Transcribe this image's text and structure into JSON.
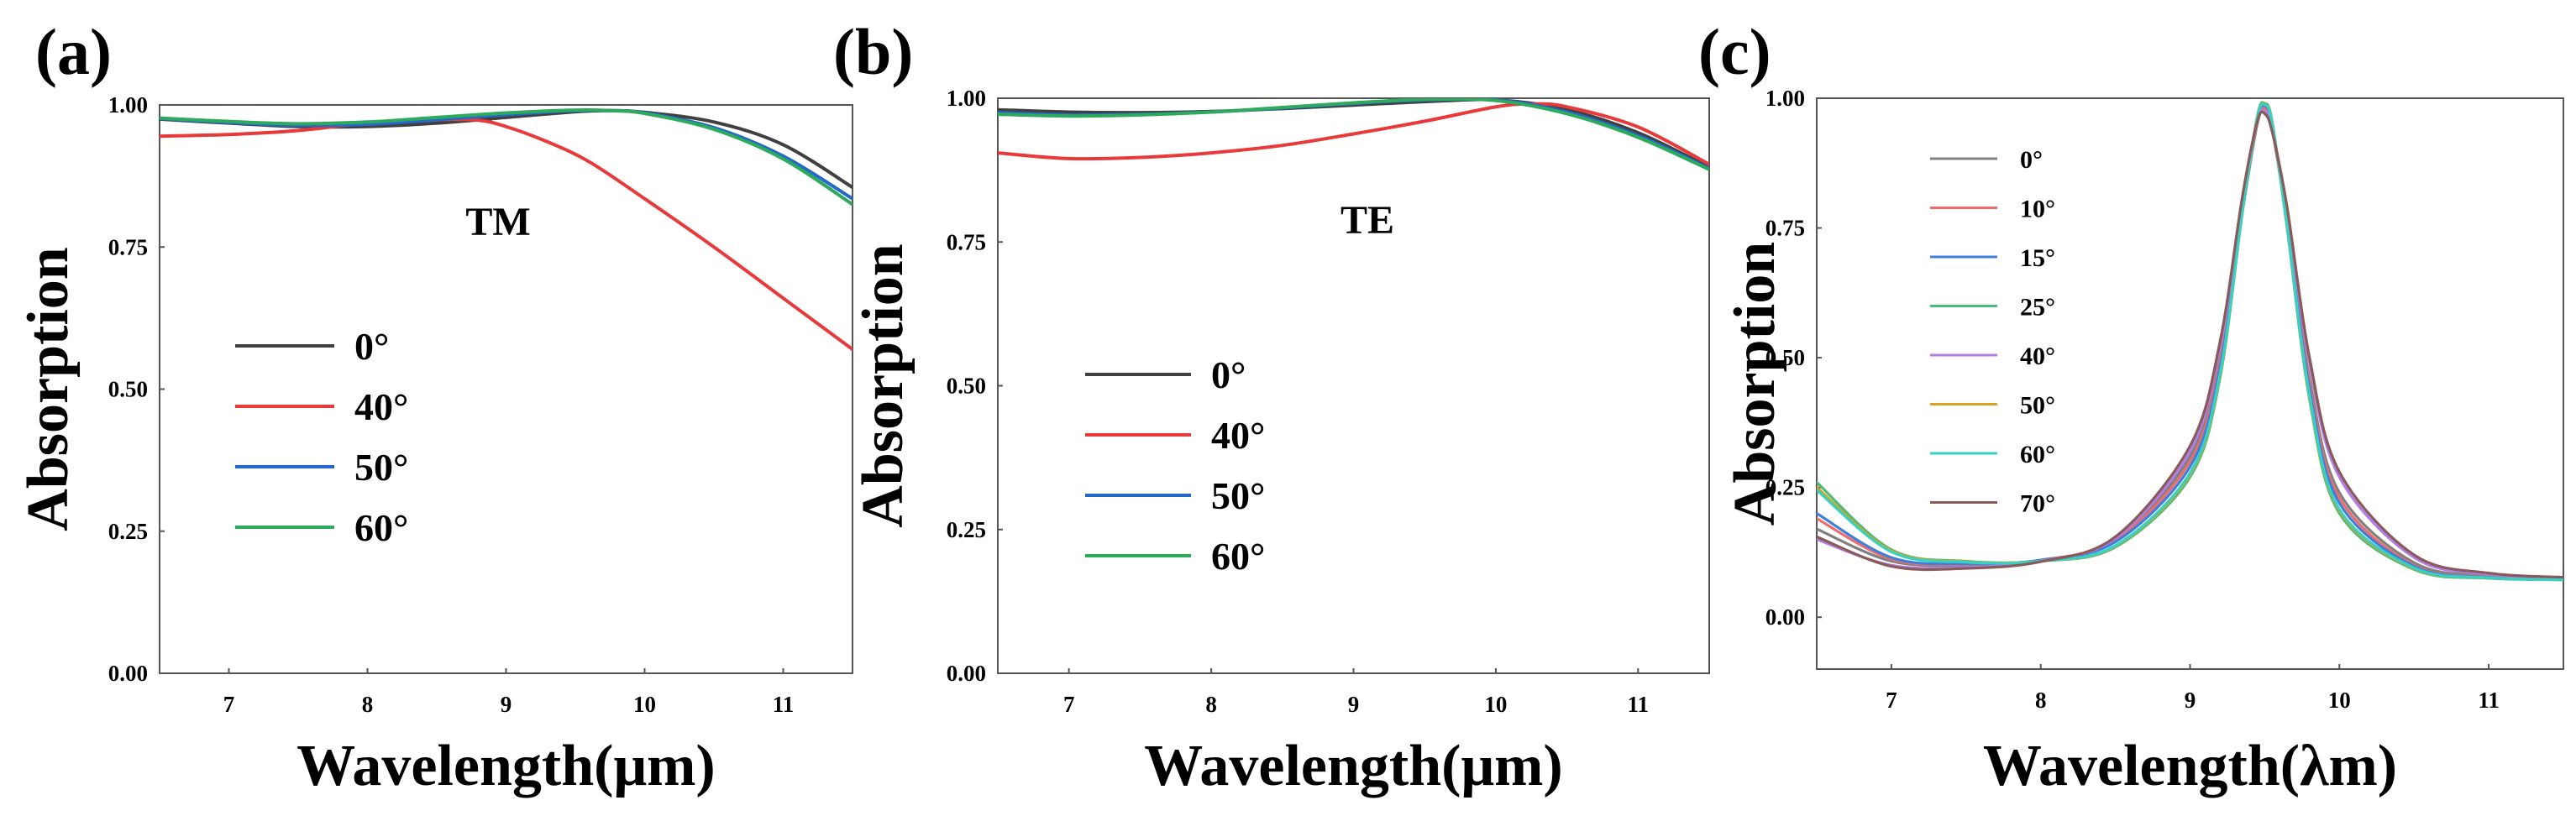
{
  "chart_data": [
    {
      "panel": "(a)",
      "type": "line",
      "mode_label": "TM",
      "xlabel": "Wavelength(μm)",
      "ylabel": "Absorption",
      "xlim": [
        6.5,
        11.5
      ],
      "ylim": [
        0,
        1.0
      ],
      "xticks": [
        "7",
        "8",
        "9",
        "10",
        "11"
      ],
      "yticks": [
        "0.00",
        "0.25",
        "0.50",
        "0.75",
        "1.00"
      ],
      "legend_style": "big",
      "series": [
        {
          "name": "0°",
          "color": "#404040",
          "x": [
            6.5,
            7.0,
            7.5,
            8.0,
            8.5,
            9.0,
            9.5,
            9.75,
            10.0,
            10.5,
            11.0,
            11.5
          ],
          "y": [
            0.975,
            0.968,
            0.962,
            0.962,
            0.968,
            0.978,
            0.988,
            0.99,
            0.987,
            0.97,
            0.93,
            0.855
          ]
        },
        {
          "name": "40°",
          "color": "#e8393b",
          "x": [
            6.5,
            7.0,
            7.5,
            8.0,
            8.5,
            8.8,
            9.0,
            9.3,
            9.6,
            10.0,
            10.5,
            11.0,
            11.5
          ],
          "y": [
            0.945,
            0.948,
            0.955,
            0.968,
            0.974,
            0.973,
            0.962,
            0.935,
            0.9,
            0.835,
            0.75,
            0.66,
            0.57
          ]
        },
        {
          "name": "50°",
          "color": "#2469c9",
          "x": [
            6.5,
            7.0,
            7.5,
            8.0,
            8.5,
            9.0,
            9.5,
            9.75,
            10.0,
            10.5,
            11.0,
            11.5
          ],
          "y": [
            0.976,
            0.969,
            0.964,
            0.966,
            0.974,
            0.983,
            0.99,
            0.99,
            0.986,
            0.96,
            0.91,
            0.835
          ]
        },
        {
          "name": "60°",
          "color": "#2eaa5c",
          "x": [
            6.5,
            7.0,
            7.5,
            8.0,
            8.5,
            9.0,
            9.5,
            9.75,
            10.0,
            10.5,
            11.0,
            11.5
          ],
          "y": [
            0.977,
            0.971,
            0.967,
            0.97,
            0.978,
            0.986,
            0.991,
            0.99,
            0.985,
            0.957,
            0.905,
            0.825
          ]
        }
      ]
    },
    {
      "panel": "(b)",
      "type": "line",
      "mode_label": "TE",
      "xlabel": "Wavelength(μm)",
      "ylabel": "Absorption",
      "xlim": [
        6.5,
        11.5
      ],
      "ylim": [
        0,
        1.0
      ],
      "xticks": [
        "7",
        "8",
        "9",
        "10",
        "11"
      ],
      "yticks": [
        "0.00",
        "0.25",
        "0.50",
        "0.75",
        "1.00"
      ],
      "legend_style": "big",
      "series": [
        {
          "name": "0°",
          "color": "#404040",
          "x": [
            6.5,
            7.0,
            7.5,
            8.0,
            8.5,
            9.0,
            9.5,
            10.0,
            10.5,
            11.0,
            11.5
          ],
          "y": [
            0.98,
            0.976,
            0.975,
            0.977,
            0.982,
            0.988,
            0.994,
            0.997,
            0.98,
            0.94,
            0.88
          ]
        },
        {
          "name": "40°",
          "color": "#e8393b",
          "x": [
            6.5,
            7.0,
            7.5,
            8.0,
            8.5,
            9.0,
            9.5,
            10.0,
            10.25,
            10.5,
            11.0,
            11.5
          ],
          "y": [
            0.905,
            0.895,
            0.897,
            0.905,
            0.918,
            0.938,
            0.96,
            0.985,
            0.99,
            0.985,
            0.95,
            0.885
          ]
        },
        {
          "name": "50°",
          "color": "#2469c9",
          "x": [
            6.5,
            7.0,
            7.5,
            8.0,
            8.5,
            9.0,
            9.5,
            10.0,
            10.5,
            11.0,
            11.5
          ],
          "y": [
            0.975,
            0.971,
            0.972,
            0.976,
            0.983,
            0.991,
            0.997,
            0.997,
            0.976,
            0.935,
            0.878
          ]
        },
        {
          "name": "60°",
          "color": "#2eaa5c",
          "x": [
            6.5,
            7.0,
            7.5,
            8.0,
            8.5,
            9.0,
            9.5,
            10.0,
            10.5,
            11.0,
            11.5
          ],
          "y": [
            0.972,
            0.969,
            0.971,
            0.976,
            0.984,
            0.992,
            0.998,
            0.996,
            0.973,
            0.932,
            0.876
          ]
        }
      ]
    },
    {
      "panel": "(c)",
      "type": "line",
      "mode_label": "",
      "xlabel": "Wavelength(λm)",
      "ylabel": "Absorption",
      "xlim": [
        6.5,
        11.5
      ],
      "ylim": [
        -0.1,
        1.0
      ],
      "xticks": [
        "7",
        "8",
        "9",
        "10",
        "11"
      ],
      "yticks": [
        "0.00",
        "0.25",
        "0.50",
        "0.75",
        "1.00"
      ],
      "legend_style": "small",
      "series": [
        {
          "name": "0°",
          "color": "#808080",
          "x": [
            6.5,
            7.0,
            7.5,
            8.0,
            8.5,
            9.0,
            9.2,
            9.35,
            9.45,
            9.5,
            9.55,
            9.65,
            9.8,
            10.0,
            10.5,
            11.0,
            11.5
          ],
          "y": [
            0.17,
            0.108,
            0.1,
            0.11,
            0.15,
            0.31,
            0.5,
            0.78,
            0.95,
            0.975,
            0.94,
            0.76,
            0.46,
            0.24,
            0.105,
            0.08,
            0.075
          ]
        },
        {
          "name": "10°",
          "color": "#f06c6c",
          "x": [
            6.5,
            7.0,
            7.5,
            8.0,
            8.5,
            9.0,
            9.2,
            9.35,
            9.45,
            9.5,
            9.55,
            9.65,
            9.8,
            10.0,
            10.5,
            11.0,
            11.5
          ],
          "y": [
            0.19,
            0.112,
            0.102,
            0.11,
            0.148,
            0.3,
            0.49,
            0.78,
            0.955,
            0.98,
            0.945,
            0.765,
            0.45,
            0.23,
            0.1,
            0.078,
            0.074
          ]
        },
        {
          "name": "15°",
          "color": "#3f7fdc",
          "x": [
            6.5,
            7.0,
            7.5,
            8.0,
            8.5,
            9.0,
            9.2,
            9.35,
            9.45,
            9.5,
            9.55,
            9.65,
            9.8,
            10.0,
            10.5,
            11.0,
            11.5
          ],
          "y": [
            0.2,
            0.115,
            0.103,
            0.11,
            0.145,
            0.29,
            0.48,
            0.78,
            0.96,
            0.985,
            0.95,
            0.76,
            0.44,
            0.22,
            0.098,
            0.077,
            0.073
          ]
        },
        {
          "name": "25°",
          "color": "#4dbb7a",
          "x": [
            6.5,
            7.0,
            7.5,
            8.0,
            8.5,
            9.0,
            9.2,
            9.35,
            9.45,
            9.5,
            9.55,
            9.65,
            9.8,
            10.0,
            10.5,
            11.0,
            11.5
          ],
          "y": [
            0.26,
            0.13,
            0.108,
            0.108,
            0.135,
            0.27,
            0.46,
            0.78,
            0.965,
            0.99,
            0.955,
            0.75,
            0.42,
            0.2,
            0.092,
            0.075,
            0.072
          ]
        },
        {
          "name": "40°",
          "color": "#b07ee6",
          "x": [
            6.5,
            7.0,
            7.5,
            8.0,
            8.5,
            9.0,
            9.2,
            9.35,
            9.45,
            9.5,
            9.55,
            9.65,
            9.8,
            10.0,
            10.5,
            11.0,
            11.5
          ],
          "y": [
            0.15,
            0.1,
            0.096,
            0.108,
            0.152,
            0.32,
            0.52,
            0.8,
            0.955,
            0.975,
            0.94,
            0.78,
            0.49,
            0.27,
            0.115,
            0.083,
            0.076
          ]
        },
        {
          "name": "50°",
          "color": "#d9a11c",
          "x": [
            6.5,
            7.0,
            7.5,
            8.0,
            8.5,
            9.0,
            9.2,
            9.35,
            9.45,
            9.5,
            9.55,
            9.65,
            9.8,
            10.0,
            10.5,
            11.0,
            11.5
          ],
          "y": [
            0.25,
            0.128,
            0.107,
            0.108,
            0.137,
            0.275,
            0.465,
            0.78,
            0.963,
            0.988,
            0.953,
            0.752,
            0.425,
            0.205,
            0.094,
            0.076,
            0.072
          ]
        },
        {
          "name": "60°",
          "color": "#35d1c4",
          "x": [
            6.5,
            7.0,
            7.5,
            8.0,
            8.5,
            9.0,
            9.2,
            9.35,
            9.45,
            9.5,
            9.55,
            9.65,
            9.8,
            10.0,
            10.5,
            11.0,
            11.5
          ],
          "y": [
            0.245,
            0.126,
            0.106,
            0.108,
            0.138,
            0.278,
            0.468,
            0.78,
            0.962,
            0.987,
            0.952,
            0.753,
            0.428,
            0.208,
            0.095,
            0.076,
            0.072
          ]
        },
        {
          "name": "70°",
          "color": "#8a5a5a",
          "x": [
            6.5,
            7.0,
            7.5,
            8.0,
            8.5,
            9.0,
            9.2,
            9.35,
            9.45,
            9.5,
            9.55,
            9.65,
            9.8,
            10.0,
            10.5,
            11.0,
            11.5
          ],
          "y": [
            0.155,
            0.098,
            0.094,
            0.107,
            0.155,
            0.33,
            0.53,
            0.81,
            0.955,
            0.97,
            0.935,
            0.79,
            0.5,
            0.28,
            0.12,
            0.085,
            0.077
          ]
        }
      ]
    }
  ]
}
